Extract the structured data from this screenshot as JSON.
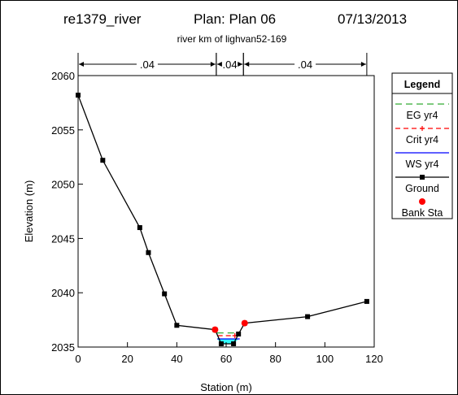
{
  "header": {
    "plan_id": "re1379_river",
    "plan_label": "Plan: Plan 06",
    "date": "07/13/2013",
    "subtitle": "river km of lighvan52-169"
  },
  "chart_data": {
    "type": "line",
    "title": "re1379_river    Plan: Plan 06    07/13/2013",
    "subtitle": "river km of lighvan52-169",
    "xlabel": "Station (m)",
    "ylabel": "Elevation (m)",
    "xlim": [
      0,
      120
    ],
    "ylim": [
      2035,
      2060
    ],
    "xticks": [
      0,
      20,
      40,
      60,
      80,
      100,
      120
    ],
    "yticks": [
      2035,
      2040,
      2045,
      2050,
      2055,
      2060
    ],
    "grid": false,
    "legend_position": "right",
    "legend_title": "Legend",
    "manning_n": [
      {
        "label": ".04",
        "from": 0,
        "to": 56
      },
      {
        "label": ".04",
        "from": 56,
        "to": 67
      },
      {
        "label": ".04",
        "from": 67,
        "to": 117
      }
    ],
    "series": [
      {
        "name": "EG yr4",
        "color": "#33aa33",
        "dash": "8,5",
        "kind": "line",
        "x": [
          56.3,
          65.8
        ],
        "y": [
          2036.3,
          2036.3
        ]
      },
      {
        "name": "Crit yr4",
        "color": "#ff0000",
        "dash": "6,4",
        "kind": "line",
        "x": [
          56.6,
          65.2
        ],
        "y": [
          2036.05,
          2036.05
        ]
      },
      {
        "name": "WS yr4",
        "color": "#0000ff",
        "dash": "",
        "kind": "line",
        "x": [
          56.4,
          65.5
        ],
        "y": [
          2035.75,
          2035.75
        ]
      },
      {
        "name": "Ground",
        "color": "#000000",
        "kind": "line-markers",
        "x": [
          0,
          10,
          25,
          28.5,
          35,
          40,
          55.5,
          58,
          63,
          65,
          67.5,
          93,
          117
        ],
        "y": [
          2058.2,
          2052.2,
          2046,
          2043.7,
          2039.9,
          2037,
          2036.6,
          2035.3,
          2035.3,
          2036.2,
          2037.2,
          2037.8,
          2039.2
        ]
      },
      {
        "name": "Bank Sta",
        "color": "#ff0000",
        "kind": "points",
        "x": [
          55.5,
          67.5
        ],
        "y": [
          2036.6,
          2037.2
        ]
      }
    ]
  }
}
